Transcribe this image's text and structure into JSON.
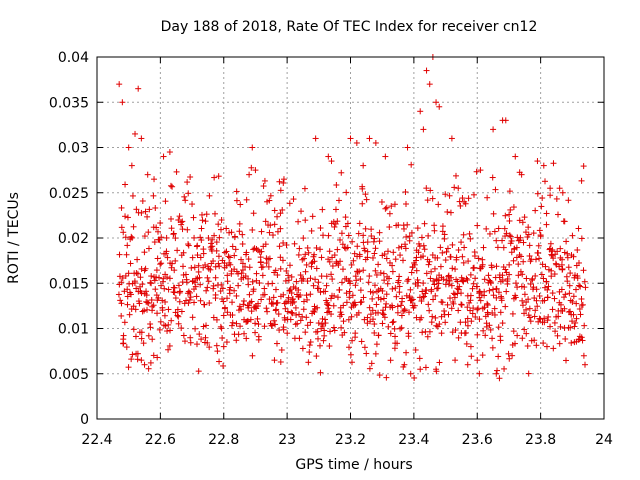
{
  "chart_data": {
    "type": "scatter",
    "title": "Day 188 of 2018, Rate Of TEC Index for receiver cn12",
    "xlabel": "GPS time / hours",
    "ylabel": "ROTI / TECUs",
    "xlim": [
      22.4,
      24.0
    ],
    "ylim": [
      0,
      0.04
    ],
    "xticks": [
      22.4,
      22.6,
      22.8,
      23.0,
      23.2,
      23.4,
      23.6,
      23.8,
      24.0
    ],
    "xtick_labels": [
      "22.4",
      "22.6",
      "22.8",
      "23",
      "23.2",
      "23.4",
      "23.6",
      "23.8",
      "24"
    ],
    "yticks": [
      0,
      0.005,
      0.01,
      0.015,
      0.02,
      0.025,
      0.03,
      0.035,
      0.04
    ],
    "ytick_labels": [
      "0",
      "0.005",
      "0.01",
      "0.015",
      "0.02",
      "0.025",
      "0.03",
      "0.035",
      "0.04"
    ],
    "grid": true,
    "marker": "+",
    "marker_color": "#e00000",
    "x_range_of_points": [
      22.47,
      23.94
    ],
    "series": [
      {
        "name": "ROTI",
        "points": [
          [
            22.47,
            0.037
          ],
          [
            22.48,
            0.035
          ],
          [
            22.53,
            0.0365
          ],
          [
            22.52,
            0.0315
          ],
          [
            22.54,
            0.031
          ],
          [
            22.5,
            0.03
          ],
          [
            22.51,
            0.028
          ],
          [
            22.56,
            0.027
          ],
          [
            22.58,
            0.0265
          ],
          [
            22.61,
            0.029
          ],
          [
            22.63,
            0.0295
          ],
          [
            22.89,
            0.03
          ],
          [
            22.88,
            0.027
          ],
          [
            22.9,
            0.0275
          ],
          [
            22.99,
            0.0265
          ],
          [
            23.09,
            0.031
          ],
          [
            23.13,
            0.029
          ],
          [
            23.14,
            0.0285
          ],
          [
            23.2,
            0.031
          ],
          [
            23.22,
            0.0305
          ],
          [
            23.26,
            0.031
          ],
          [
            23.28,
            0.0305
          ],
          [
            23.24,
            0.028
          ],
          [
            23.31,
            0.029
          ],
          [
            23.38,
            0.03
          ],
          [
            23.42,
            0.034
          ],
          [
            23.44,
            0.0385
          ],
          [
            23.45,
            0.037
          ],
          [
            23.46,
            0.04
          ],
          [
            23.47,
            0.035
          ],
          [
            23.48,
            0.0345
          ],
          [
            23.43,
            0.032
          ],
          [
            23.52,
            0.031
          ],
          [
            23.54,
            0.0255
          ],
          [
            23.61,
            0.0275
          ],
          [
            23.65,
            0.032
          ],
          [
            23.68,
            0.033
          ],
          [
            23.69,
            0.033
          ],
          [
            23.72,
            0.029
          ],
          [
            23.74,
            0.027
          ],
          [
            23.79,
            0.0285
          ],
          [
            23.81,
            0.028
          ],
          [
            23.83,
            0.0255
          ],
          [
            23.86,
            0.0255
          ],
          [
            23.87,
            0.025
          ],
          [
            23.55,
            0.0095
          ],
          [
            23.58,
            0.008
          ],
          [
            23.67,
            0.0045
          ],
          [
            23.66,
            0.005
          ],
          [
            23.42,
            0.0055
          ],
          [
            23.39,
            0.005
          ],
          [
            23.37,
            0.006
          ],
          [
            23.47,
            0.0055
          ],
          [
            23.53,
            0.0065
          ],
          [
            23.57,
            0.006
          ],
          [
            22.81,
            0.0085
          ],
          [
            22.8,
            0.008
          ],
          [
            22.78,
            0.0075
          ],
          [
            22.96,
            0.0065
          ],
          [
            22.98,
            0.0063
          ],
          [
            22.54,
            0.0065
          ],
          [
            22.55,
            0.006
          ],
          [
            22.57,
            0.0062
          ],
          [
            22.59,
            0.0068
          ],
          [
            23.94,
            0.006
          ],
          [
            23.82,
            0.008
          ],
          [
            23.84,
            0.0078
          ],
          [
            23.71,
            0.007
          ],
          [
            23.6,
            0.0065
          ],
          [
            23.28,
            0.0072
          ]
        ]
      }
    ]
  }
}
